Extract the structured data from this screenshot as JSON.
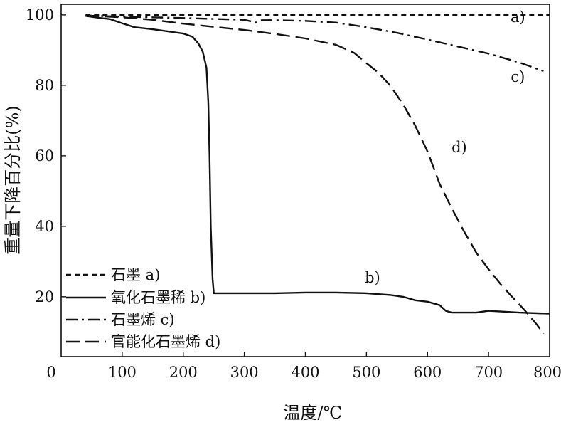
{
  "chart_data": {
    "type": "line",
    "title": "",
    "xlabel": "温度/℃",
    "ylabel": "重量下降百分比(%)",
    "xlim": [
      0,
      800
    ],
    "ylim": [
      3,
      103
    ],
    "xticks": [
      0,
      100,
      200,
      300,
      400,
      500,
      600,
      700,
      800
    ],
    "yticks": [
      20,
      40,
      60,
      80,
      100
    ],
    "grid": false,
    "legend_position": "bottom-left",
    "series": [
      {
        "name": "石墨 a)",
        "label": "a)",
        "style": "short-dash",
        "x": [
          40,
          100,
          200,
          300,
          400,
          500,
          600,
          700,
          800
        ],
        "y": [
          100,
          100,
          100,
          100,
          100,
          100,
          100,
          100,
          100
        ]
      },
      {
        "name": "氧化石墨稀 b)",
        "label": "b)",
        "style": "solid",
        "x": [
          40,
          60,
          80,
          90,
          100,
          120,
          150,
          200,
          215,
          225,
          232,
          238,
          241,
          243,
          245,
          248,
          250,
          260,
          300,
          350,
          400,
          450,
          500,
          540,
          560,
          580,
          600,
          620,
          630,
          640,
          680,
          700,
          750,
          800
        ],
        "y": [
          99.7,
          99.2,
          98.8,
          98.2,
          97.6,
          96.5,
          95.9,
          94.7,
          93.8,
          91.8,
          89.5,
          85,
          75,
          60,
          40,
          25,
          21,
          21,
          21,
          21,
          21.2,
          21.2,
          21,
          20.5,
          20,
          19,
          18.6,
          17.6,
          16,
          15.5,
          15.5,
          16,
          15.5,
          15.2
        ]
      },
      {
        "name": "石墨烯 c)",
        "label": "c)",
        "style": "dash-dot",
        "x": [
          40,
          100,
          200,
          300,
          320,
          325,
          330,
          350,
          400,
          450,
          500,
          550,
          600,
          650,
          700,
          750,
          790
        ],
        "y": [
          99.8,
          99.5,
          99.1,
          98.6,
          97.8,
          98.4,
          98.5,
          98.5,
          98.3,
          97.8,
          96.5,
          94.9,
          93,
          91,
          89,
          86.5,
          84
        ]
      },
      {
        "name": "官能化石墨烯 d)",
        "label": "d)",
        "style": "long-dash",
        "x": [
          40,
          100,
          150,
          200,
          250,
          300,
          350,
          400,
          450,
          480,
          500,
          520,
          540,
          560,
          580,
          600,
          620,
          640,
          660,
          680,
          700,
          720,
          740,
          760,
          780,
          790
        ],
        "y": [
          99.8,
          99.3,
          98.6,
          97.5,
          96.6,
          95.7,
          94.6,
          93.3,
          91.5,
          89.2,
          86.3,
          83.5,
          79.7,
          74.6,
          68.5,
          61.2,
          52,
          45,
          38.5,
          32.5,
          27.8,
          23.5,
          19.7,
          16,
          11.9,
          9.5
        ]
      }
    ],
    "legend": [
      {
        "label": "石墨 a)",
        "style": "short-dash"
      },
      {
        "label": "氧化石墨稀 b)",
        "style": "solid"
      },
      {
        "label": "石墨烯 c)",
        "style": "dash-dot"
      },
      {
        "label": "官能化石墨烯 d)",
        "style": "long-dash"
      }
    ],
    "curve_labels": [
      {
        "text": "a)",
        "x": 748,
        "y": 98
      },
      {
        "text": "b)",
        "x": 510,
        "y": 24
      },
      {
        "text": "c)",
        "x": 748,
        "y": 81
      },
      {
        "text": "d)",
        "x": 652,
        "y": 61
      }
    ]
  }
}
